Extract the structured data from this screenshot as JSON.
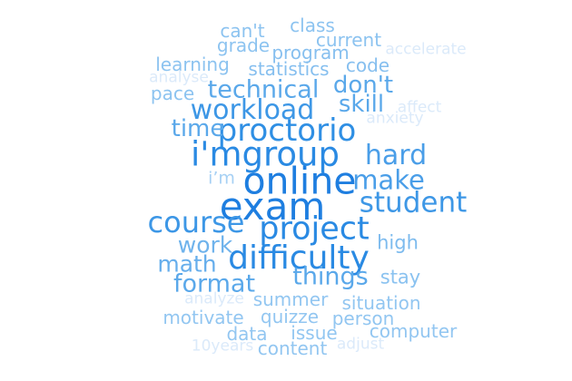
{
  "cloud": {
    "words": [
      {
        "text": "exam",
        "weight": 1.0,
        "color": "#1e7ee0"
      },
      {
        "text": "online",
        "weight": 0.97,
        "color": "#1e7ee0"
      },
      {
        "text": "i'mgroup",
        "weight": 0.82,
        "color": "#2a8ae3"
      },
      {
        "text": "difficulty",
        "weight": 0.8,
        "color": "#2a8ae3"
      },
      {
        "text": "project",
        "weight": 0.78,
        "color": "#2a8ae3"
      },
      {
        "text": "proctorio",
        "weight": 0.74,
        "color": "#2f8fe4"
      },
      {
        "text": "course",
        "weight": 0.66,
        "color": "#3d97e6"
      },
      {
        "text": "student",
        "weight": 0.64,
        "color": "#3d97e6"
      },
      {
        "text": "workload",
        "weight": 0.6,
        "color": "#3d97e6"
      },
      {
        "text": "hard",
        "weight": 0.6,
        "color": "#4a9ee8"
      },
      {
        "text": "make",
        "weight": 0.58,
        "color": "#4a9ee8"
      },
      {
        "text": "technical",
        "weight": 0.5,
        "color": "#5aa8ea"
      },
      {
        "text": "format",
        "weight": 0.5,
        "color": "#5aa8ea"
      },
      {
        "text": "things",
        "weight": 0.5,
        "color": "#5aa8ea"
      },
      {
        "text": "time",
        "weight": 0.48,
        "color": "#5aa8ea"
      },
      {
        "text": "don't",
        "weight": 0.46,
        "color": "#5aa8ea"
      },
      {
        "text": "skill",
        "weight": 0.46,
        "color": "#5aa8ea"
      },
      {
        "text": "math",
        "weight": 0.44,
        "color": "#66aeec"
      },
      {
        "text": "work",
        "weight": 0.42,
        "color": "#6fb3ec"
      },
      {
        "text": "high",
        "weight": 0.3,
        "color": "#7dbbee"
      },
      {
        "text": "stay",
        "weight": 0.3,
        "color": "#8ac2f0"
      },
      {
        "text": "statistics",
        "weight": 0.28,
        "color": "#86bfef"
      },
      {
        "text": "program",
        "weight": 0.28,
        "color": "#86bfef"
      },
      {
        "text": "code",
        "weight": 0.28,
        "color": "#86bfef"
      },
      {
        "text": "learning",
        "weight": 0.27,
        "color": "#8cc3f0"
      },
      {
        "text": "grade",
        "weight": 0.27,
        "color": "#8cc3f0"
      },
      {
        "text": "can't",
        "weight": 0.27,
        "color": "#8cc3f0"
      },
      {
        "text": "class",
        "weight": 0.27,
        "color": "#8cc3f0"
      },
      {
        "text": "current",
        "weight": 0.27,
        "color": "#8cc3f0"
      },
      {
        "text": "pace",
        "weight": 0.27,
        "color": "#8cc3f0"
      },
      {
        "text": "i’m",
        "weight": 0.24,
        "color": "#a6d0f4"
      },
      {
        "text": "summer",
        "weight": 0.26,
        "color": "#92c6f1"
      },
      {
        "text": "situation",
        "weight": 0.26,
        "color": "#92c6f1"
      },
      {
        "text": "motivate",
        "weight": 0.26,
        "color": "#92c6f1"
      },
      {
        "text": "quizze",
        "weight": 0.26,
        "color": "#92c6f1"
      },
      {
        "text": "person",
        "weight": 0.26,
        "color": "#92c6f1"
      },
      {
        "text": "data",
        "weight": 0.26,
        "color": "#92c6f1"
      },
      {
        "text": "issue",
        "weight": 0.26,
        "color": "#92c6f1"
      },
      {
        "text": "computer",
        "weight": 0.26,
        "color": "#92c6f1"
      },
      {
        "text": "content",
        "weight": 0.26,
        "color": "#92c6f1"
      },
      {
        "text": "accelerate",
        "weight": 0.16,
        "color": "#dbeafa"
      },
      {
        "text": "analyse",
        "weight": 0.16,
        "color": "#dbeafa"
      },
      {
        "text": "affect",
        "weight": 0.16,
        "color": "#dbeafa"
      },
      {
        "text": "anxiety",
        "weight": 0.16,
        "color": "#dbeafa"
      },
      {
        "text": "analyze",
        "weight": 0.16,
        "color": "#dbeafa"
      },
      {
        "text": "10years",
        "weight": 0.16,
        "color": "#dbeafa"
      },
      {
        "text": "adjust",
        "weight": 0.16,
        "color": "#dbeafa"
      }
    ]
  }
}
